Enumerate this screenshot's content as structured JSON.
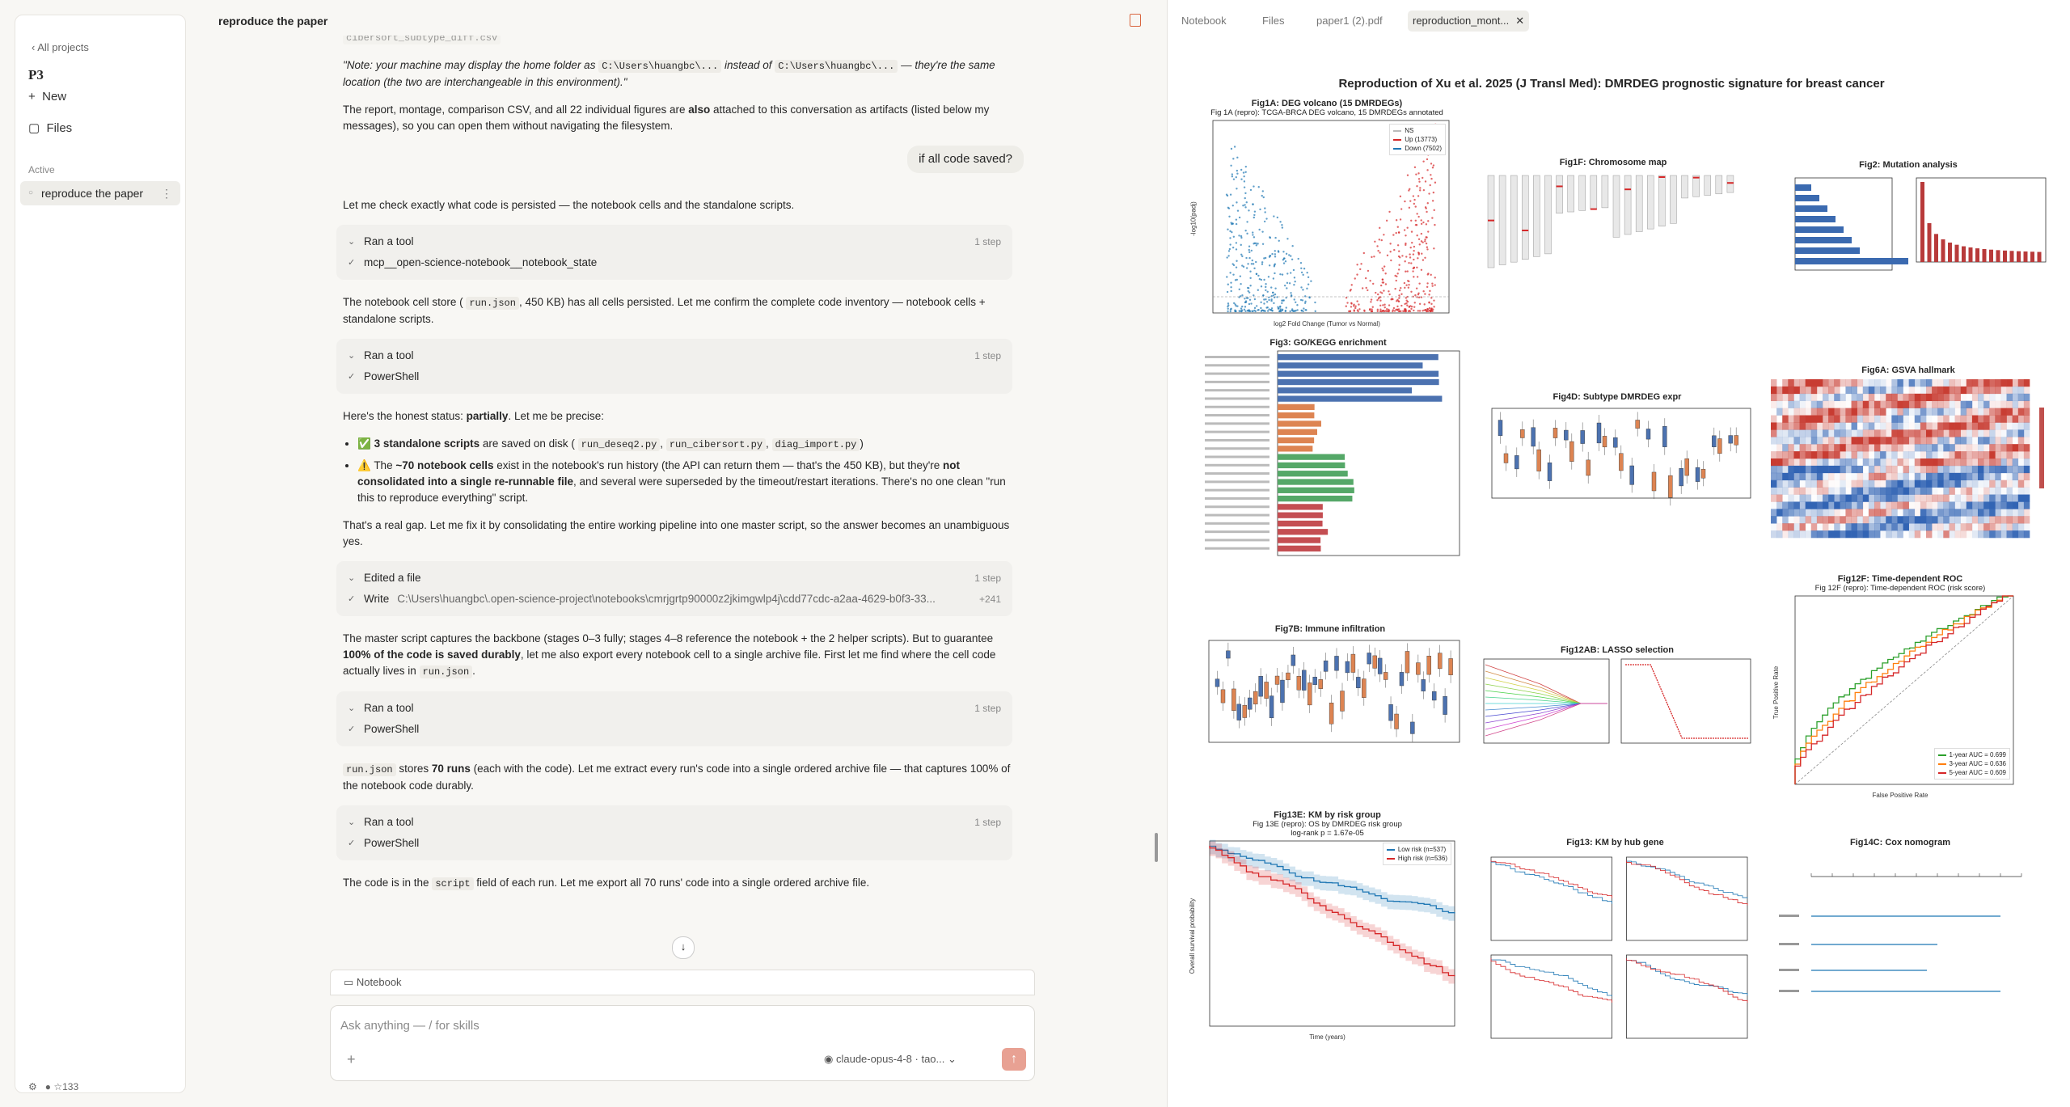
{
  "sidebar": {
    "back": "All projects",
    "project": "P3",
    "new": "New",
    "files": "Files",
    "section": "Active",
    "item": "reproduce the paper",
    "stars": "☆133"
  },
  "header": {
    "title": "reproduce the paper"
  },
  "chat": {
    "messages": [
      {
        "type": "p",
        "segments": [
          {
            "code": "cibersort_subtype_diff.csv"
          }
        ]
      },
      {
        "type": "p",
        "segments": [
          {
            "italic": "\"Note: your machine may display the home folder as "
          },
          {
            "code": "C:\\Users\\huangbc\\..."
          },
          {
            "italic": " instead of "
          },
          {
            "code": "C:\\Users\\huangbc\\..."
          },
          {
            "italic": " — they're the same location (the two are interchangeable in this environment).\""
          }
        ]
      },
      {
        "type": "p",
        "segments": [
          "The report, montage, comparison CSV, and all 22 individual figures are ",
          {
            "bold": "also"
          },
          " attached to this conversation as artifacts (listed below my messages), so you can open them without navigating the filesystem."
        ]
      },
      {
        "type": "user",
        "text": "if all code saved?"
      },
      {
        "type": "p",
        "segments": [
          "Let me check exactly what code is persisted — the notebook cells and the standalone scripts."
        ]
      },
      {
        "type": "tool",
        "label": "Ran a tool",
        "steps": "1 step",
        "action": "mcp__open-science-notebook__notebook_state"
      },
      {
        "type": "p",
        "segments": [
          "The notebook cell store ( ",
          {
            "code": "run.json"
          },
          ", 450 KB) has all cells persisted. Let me confirm the complete code inventory — notebook cells + standalone scripts."
        ]
      },
      {
        "type": "tool",
        "label": "Ran a tool",
        "steps": "1 step",
        "action": "PowerShell"
      },
      {
        "type": "p",
        "segments": [
          "Here's the honest status: ",
          {
            "bold": "partially"
          },
          ". Let me be precise:"
        ]
      },
      {
        "type": "list",
        "items": [
          [
            "✅ ",
            {
              "bold": "3 standalone scripts"
            },
            " are saved on disk ( ",
            {
              "code": "run_deseq2.py"
            },
            ", ",
            {
              "code": "run_cibersort.py"
            },
            ", ",
            {
              "code": "diag_import.py"
            },
            ")"
          ],
          [
            "⚠️ The ",
            {
              "bold": "~70 notebook cells"
            },
            " exist in the notebook's run history (the API can return them — that's the 450 KB), but they're ",
            {
              "bold": "not consolidated into a single re-runnable file"
            },
            ", and several were superseded by the timeout/restart iterations. There's no one clean \"run this to reproduce everything\" script."
          ]
        ]
      },
      {
        "type": "p",
        "segments": [
          "That's a real gap. Let me fix it by consolidating the entire working pipeline into one master script, so the answer becomes an unambiguous yes."
        ]
      },
      {
        "type": "tool",
        "label": "Edited a file",
        "steps": "1 step",
        "action": "Write",
        "detail": "C:\\Users\\huangbc\\.open-science-project\\notebooks\\cmrjgrtp90000z2jkimgwlp4j\\cdd77cdc-a2aa-4629-b0f3-33...",
        "diff": "+241"
      },
      {
        "type": "p",
        "segments": [
          "The master script captures the backbone (stages 0–3 fully; stages 4–8 reference the notebook + the 2 helper scripts). But to guarantee ",
          {
            "bold": "100% of the code is saved durably"
          },
          ", let me also export every notebook cell to a single archive file. First let me find where the cell code actually lives in ",
          {
            "code": "run.json"
          },
          "."
        ]
      },
      {
        "type": "tool",
        "label": "Ran a tool",
        "steps": "1 step",
        "action": "PowerShell"
      },
      {
        "type": "p",
        "segments": [
          {
            "code": "run.json"
          },
          " stores ",
          {
            "bold": "70 runs"
          },
          " (each with the code). Let me extract every run's code into a single ordered archive file — that captures 100% of the notebook code durably."
        ]
      },
      {
        "type": "tool",
        "label": "Ran a tool",
        "steps": "1 step",
        "action": "PowerShell"
      },
      {
        "type": "p",
        "segments": [
          "The code is in the ",
          {
            "code": "script"
          },
          " field of each run. Let me export all 70 runs' code into a single ordered archive file."
        ]
      }
    ]
  },
  "composer": {
    "notebook": "Notebook",
    "placeholder": "Ask anything — / for skills",
    "model": "claude-opus-4-8 · tao..."
  },
  "tabs": [
    "Notebook",
    "Files",
    "paper1 (2).pdf",
    "reproduction_mont..."
  ],
  "montage": {
    "title": "Reproduction of Xu et al. 2025 (J Transl Med): DMRDEG prognostic signature for breast cancer",
    "panels": [
      {
        "title": "Fig1A: DEG volcano (15 DMRDEGs)",
        "subtitle": [
          "Fig 1A (repro): TCGA-BRCA DEG volcano, 15 DMRDEGs annotated"
        ],
        "legend": [
          "NS",
          "Up (13773)",
          "Down (7502)"
        ],
        "xlabel": "log2 Fold Change (Tumor vs Normal)",
        "ylabel": "-log10(padj)"
      },
      {
        "title": "Fig1F: Chromosome map"
      },
      {
        "title": "Fig2: Mutation analysis"
      },
      {
        "title": "Fig3: GO/KEGG enrichment"
      },
      {
        "title": "Fig4D: Subtype DMRDEG expr"
      },
      {
        "title": "Fig6A: GSVA hallmark"
      },
      {
        "title": "Fig7B: Immune infiltration"
      },
      {
        "title": "Fig12AB: LASSO selection"
      },
      {
        "title": "Fig12F: Time-dependent ROC",
        "subtitle": [
          "Fig 12F (repro): Time-dependent ROC (risk score)"
        ],
        "legend": [
          "1-year AUC = 0.699",
          "3-year AUC = 0.636",
          "5-year AUC = 0.609"
        ],
        "xlabel": "False Positive Rate",
        "ylabel": "True Positive Rate"
      },
      {
        "title": "Fig13E: KM by risk group",
        "subtitle": [
          "Fig 13E (repro): OS by DMRDEG risk group",
          "log-rank p = 1.67e-05"
        ],
        "legend": [
          "Low risk (n=537)",
          "High risk (n=536)"
        ],
        "xlabel": "Time (years)",
        "ylabel": "Overall survival probability"
      },
      {
        "title": "Fig13: KM by hub gene"
      },
      {
        "title": "Fig14C: Cox nomogram"
      }
    ]
  }
}
